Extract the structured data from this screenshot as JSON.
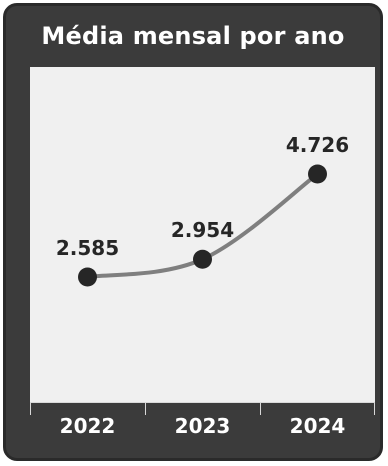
{
  "chart_data": {
    "type": "line",
    "title": "Média mensal por ano",
    "categories": [
      "2022",
      "2023",
      "2024"
    ],
    "series": [
      {
        "values": [
          2585,
          2954,
          4726
        ],
        "labels": [
          "2.585",
          "2.954",
          "4.726"
        ]
      }
    ],
    "xlabel": "",
    "ylabel": "",
    "smooth": true,
    "grid": false,
    "legend": "none",
    "colors": {
      "frame": "#3b3b3b",
      "frame_border": "#2a2a2a",
      "plot_area": "#f0f0f0",
      "line": "#7f7f7f",
      "marker": "#262626",
      "data_label": "#262626",
      "title": "#ffffff",
      "tick_label": "#ffffff"
    }
  }
}
